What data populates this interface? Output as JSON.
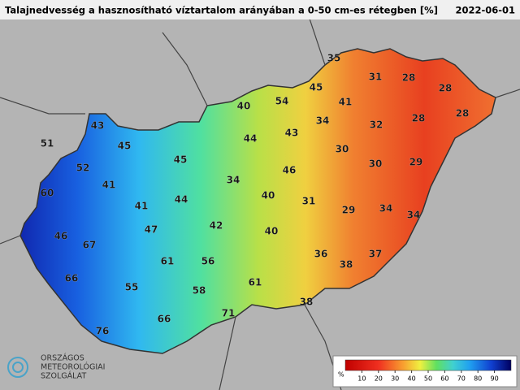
{
  "header": {
    "title": "Talajnedvesség a hasznosítható víztartalom arányában a 0-50 cm-es rétegben [%]",
    "date": "2022-06-01"
  },
  "map": {
    "labels": [
      35,
      31,
      28,
      28,
      40,
      54,
      45,
      41,
      28,
      28,
      43,
      34,
      32,
      51,
      45,
      44,
      43,
      30,
      52,
      45,
      46,
      30,
      29,
      41,
      34,
      60,
      41,
      44,
      40,
      31,
      29,
      34,
      34,
      47,
      42,
      40,
      46,
      67,
      36,
      38,
      37,
      61,
      56,
      66,
      55,
      61,
      58,
      38,
      71,
      66,
      76
    ]
  },
  "legend": {
    "unit": "%",
    "ticks": [
      10,
      20,
      30,
      40,
      50,
      60,
      70,
      80,
      90
    ]
  },
  "logo": {
    "lines": [
      "ORSZÁGOS",
      "METEOROLÓGIAI",
      "SZOLGÁLAT"
    ]
  }
}
